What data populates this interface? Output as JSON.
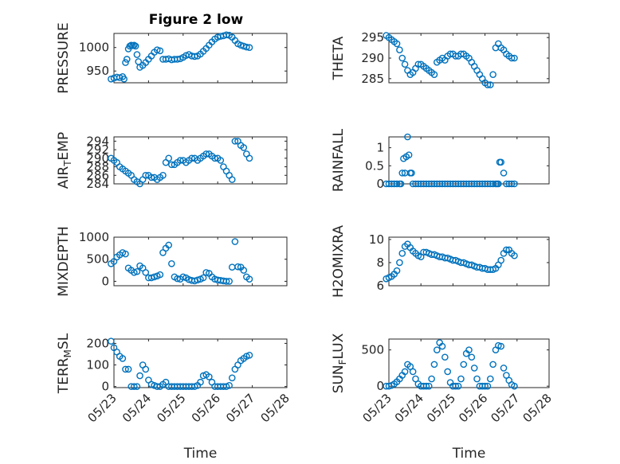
{
  "figure_title": "Figure 2 low",
  "series_color": "#0072BD",
  "chart_data": [
    {
      "type": "scatter",
      "id": "pressure",
      "title": "Figure 2 low",
      "ylabel": "PRESSURE",
      "xlabel": "",
      "xlim": [
        "05/23",
        "05/28"
      ],
      "xtick_labels": [],
      "ylim": [
        925,
        1030
      ],
      "yticks": [
        950,
        1000
      ],
      "grid": true,
      "minor_grid": true,
      "marker": "circle",
      "x": [
        "05/22 22:00",
        "05/23 00:00",
        "05/23 02:00",
        "05/23 04:00",
        "05/23 06:00",
        "05/23 07:00",
        "05/23 08:00",
        "05/23 09:00",
        "05/23 10:00",
        "05/23 11:00",
        "05/23 12:00",
        "05/23 13:00",
        "05/23 14:00",
        "05/23 15:00",
        "05/23 16:00",
        "05/23 17:00",
        "05/23 18:00",
        "05/23 20:00",
        "05/23 22:00",
        "05/24 00:00",
        "05/24 02:00",
        "05/24 04:00",
        "05/24 06:00",
        "05/24 08:00",
        "05/24 10:00",
        "05/24 12:00",
        "05/24 14:00",
        "05/24 16:00",
        "05/24 18:00",
        "05/24 20:00",
        "05/24 22:00",
        "05/25 00:00",
        "05/25 02:00",
        "05/25 04:00",
        "05/25 06:00",
        "05/25 08:00",
        "05/25 10:00",
        "05/25 12:00",
        "05/25 14:00",
        "05/25 16:00",
        "05/25 18:00",
        "05/25 20:00",
        "05/25 22:00",
        "05/26 00:00",
        "05/26 02:00",
        "05/26 04:00",
        "05/26 06:00",
        "05/26 08:00",
        "05/26 10:00",
        "05/26 12:00",
        "05/26 14:00",
        "05/26 16:00",
        "05/26 18:00",
        "05/26 20:00",
        "05/26 22:00"
      ],
      "y": [
        933,
        935,
        937,
        936,
        938,
        933,
        968,
        975,
        997,
        1003,
        1005,
        1004,
        1005,
        1003,
        985,
        970,
        958,
        962,
        968,
        975,
        982,
        990,
        995,
        993,
        975,
        975,
        976,
        974,
        975,
        975,
        976,
        979,
        983,
        985,
        982,
        981,
        982,
        986,
        992,
        998,
        1005,
        1012,
        1018,
        1022,
        1024,
        1025,
        1027,
        1026,
        1022,
        1015,
        1008,
        1005,
        1003,
        1001,
        1000
      ]
    },
    {
      "type": "scatter",
      "id": "theta",
      "title": "",
      "ylabel": "THETA",
      "xlabel": "",
      "xlim": [
        "05/23",
        "05/28"
      ],
      "xtick_labels": [],
      "ylim": [
        284,
        296
      ],
      "yticks": [
        285,
        290,
        295
      ],
      "grid": true,
      "minor_grid": true,
      "marker": "circle",
      "x": [
        "05/22 22:00",
        "05/23 00:00",
        "05/23 02:00",
        "05/23 04:00",
        "05/23 06:00",
        "05/23 08:00",
        "05/23 10:00",
        "05/23 12:00",
        "05/23 14:00",
        "05/23 16:00",
        "05/23 18:00",
        "05/23 20:00",
        "05/23 22:00",
        "05/24 00:00",
        "05/24 02:00",
        "05/24 04:00",
        "05/24 06:00",
        "05/24 08:00",
        "05/24 10:00",
        "05/24 12:00",
        "05/24 14:00",
        "05/24 16:00",
        "05/24 18:00",
        "05/24 20:00",
        "05/24 22:00",
        "05/25 00:00",
        "05/25 02:00",
        "05/25 04:00",
        "05/25 06:00",
        "05/25 08:00",
        "05/25 10:00",
        "05/25 12:00",
        "05/25 14:00",
        "05/25 16:00",
        "05/25 18:00",
        "05/25 20:00",
        "05/25 22:00",
        "05/26 00:00",
        "05/26 02:00",
        "05/26 04:00",
        "05/26 06:00",
        "05/26 08:00",
        "05/26 10:00",
        "05/26 12:00",
        "05/26 14:00",
        "05/26 16:00",
        "05/26 18:00",
        "05/26 20:00",
        "05/26 22:00"
      ],
      "y": [
        295.5,
        295,
        294.5,
        294,
        293.5,
        292,
        290,
        288.5,
        287,
        286,
        286.5,
        287.5,
        288.5,
        288.5,
        288,
        287.5,
        287,
        286.5,
        286,
        289,
        289.5,
        290,
        289.5,
        290.5,
        291,
        291,
        290.5,
        290.5,
        291,
        291,
        290.5,
        290,
        289,
        288,
        287,
        286,
        285,
        284,
        283.5,
        283.5,
        286,
        292.5,
        293.5,
        292.5,
        292,
        291,
        290.5,
        290,
        290
      ]
    },
    {
      "type": "scatter",
      "id": "air_temp",
      "title": "",
      "ylabel_parts": [
        "AIR",
        "T",
        "EMP"
      ],
      "xlabel": "",
      "xlim": [
        "05/23",
        "05/28"
      ],
      "xtick_labels": [],
      "ylim": [
        284,
        295
      ],
      "yticks": [
        284,
        286,
        288,
        290,
        292,
        294
      ],
      "grid": true,
      "minor_grid": true,
      "marker": "circle",
      "x": [
        "05/22 22:00",
        "05/23 00:00",
        "05/23 02:00",
        "05/23 04:00",
        "05/23 06:00",
        "05/23 08:00",
        "05/23 10:00",
        "05/23 12:00",
        "05/23 14:00",
        "05/23 16:00",
        "05/23 18:00",
        "05/23 20:00",
        "05/23 22:00",
        "05/24 00:00",
        "05/24 02:00",
        "05/24 04:00",
        "05/24 06:00",
        "05/24 08:00",
        "05/24 10:00",
        "05/24 12:00",
        "05/24 14:00",
        "05/24 16:00",
        "05/24 18:00",
        "05/24 20:00",
        "05/24 22:00",
        "05/25 00:00",
        "05/25 02:00",
        "05/25 04:00",
        "05/25 06:00",
        "05/25 08:00",
        "05/25 10:00",
        "05/25 12:00",
        "05/25 14:00",
        "05/25 16:00",
        "05/25 18:00",
        "05/25 20:00",
        "05/25 22:00",
        "05/26 00:00",
        "05/26 02:00",
        "05/26 04:00",
        "05/26 06:00",
        "05/26 08:00",
        "05/26 10:00",
        "05/26 12:00",
        "05/26 14:00",
        "05/26 16:00",
        "05/26 18:00",
        "05/26 20:00",
        "05/26 22:00"
      ],
      "y": [
        290,
        289.5,
        289,
        288,
        287.5,
        287,
        286.5,
        286,
        285,
        284.5,
        284,
        285,
        286,
        286,
        285.5,
        285.5,
        285,
        285.5,
        286,
        289,
        290,
        288.5,
        288.5,
        289,
        289.5,
        289.5,
        289,
        289.5,
        290,
        290,
        289.5,
        290,
        290.5,
        291,
        291,
        290.5,
        290,
        290,
        289.5,
        288,
        287,
        286,
        285,
        294,
        294,
        293,
        292.5,
        291,
        290
      ]
    },
    {
      "type": "scatter",
      "id": "rainfall",
      "title": "",
      "ylabel": "RAINFALL",
      "xlabel": "",
      "xlim": [
        "05/23",
        "05/28"
      ],
      "xtick_labels": [],
      "ylim": [
        0,
        1.3
      ],
      "yticks": [
        0,
        0.5,
        1
      ],
      "ytick_labels": [
        "0",
        "0.5",
        "1"
      ],
      "grid": true,
      "minor_grid": true,
      "marker": "circle",
      "x": [
        "05/22 22:00",
        "05/23 00:00",
        "05/23 02:00",
        "05/23 04:00",
        "05/23 06:00",
        "05/23 08:00",
        "05/23 09:00",
        "05/23 10:00",
        "05/23 11:00",
        "05/23 12:00",
        "05/23 13:00",
        "05/23 14:00",
        "05/23 15:00",
        "05/23 16:00",
        "05/23 17:00",
        "05/23 18:00",
        "05/23 20:00",
        "05/23 22:00",
        "05/24 00:00",
        "05/24 02:00",
        "05/24 04:00",
        "05/24 06:00",
        "05/24 08:00",
        "05/24 10:00",
        "05/24 12:00",
        "05/24 14:00",
        "05/24 16:00",
        "05/24 18:00",
        "05/24 20:00",
        "05/24 22:00",
        "05/25 00:00",
        "05/25 02:00",
        "05/25 04:00",
        "05/25 06:00",
        "05/25 08:00",
        "05/25 10:00",
        "05/25 12:00",
        "05/25 14:00",
        "05/25 16:00",
        "05/25 18:00",
        "05/25 20:00",
        "05/25 22:00",
        "05/26 00:00",
        "05/26 02:00",
        "05/26 04:00",
        "05/26 06:00",
        "05/26 08:00",
        "05/26 09:00",
        "05/26 10:00",
        "05/26 11:00",
        "05/26 12:00",
        "05/26 14:00",
        "05/26 16:00",
        "05/26 18:00",
        "05/26 20:00",
        "05/26 22:00"
      ],
      "y": [
        0,
        0,
        0,
        0,
        0,
        0,
        0,
        0.3,
        0.7,
        0.3,
        0.75,
        1.3,
        0.8,
        0.3,
        0.3,
        0,
        0,
        0,
        0,
        0,
        0,
        0,
        0,
        0,
        0,
        0,
        0,
        0,
        0,
        0,
        0,
        0,
        0,
        0,
        0,
        0,
        0,
        0,
        0,
        0,
        0,
        0,
        0,
        0,
        0,
        0,
        0,
        0,
        0,
        0.6,
        0.6,
        0.3,
        0,
        0,
        0,
        0
      ]
    },
    {
      "type": "scatter",
      "id": "mixdepth",
      "title": "",
      "ylabel": "MIXDEPTH",
      "xlabel": "",
      "xlim": [
        "05/23",
        "05/28"
      ],
      "xtick_labels": [],
      "ylim": [
        -100,
        1000
      ],
      "yticks": [
        0,
        500,
        1000
      ],
      "grid": true,
      "minor_grid": true,
      "marker": "circle",
      "x": [
        "05/22 22:00",
        "05/23 00:00",
        "05/23 02:00",
        "05/23 04:00",
        "05/23 06:00",
        "05/23 08:00",
        "05/23 10:00",
        "05/23 12:00",
        "05/23 14:00",
        "05/23 16:00",
        "05/23 18:00",
        "05/23 20:00",
        "05/23 22:00",
        "05/24 00:00",
        "05/24 02:00",
        "05/24 04:00",
        "05/24 06:00",
        "05/24 08:00",
        "05/24 10:00",
        "05/24 12:00",
        "05/24 14:00",
        "05/24 16:00",
        "05/24 18:00",
        "05/24 20:00",
        "05/24 22:00",
        "05/25 00:00",
        "05/25 02:00",
        "05/25 04:00",
        "05/25 06:00",
        "05/25 08:00",
        "05/25 10:00",
        "05/25 12:00",
        "05/25 14:00",
        "05/25 16:00",
        "05/25 18:00",
        "05/25 20:00",
        "05/25 22:00",
        "05/26 00:00",
        "05/26 02:00",
        "05/26 04:00",
        "05/26 06:00",
        "05/26 08:00",
        "05/26 10:00",
        "05/26 12:00",
        "05/26 14:00",
        "05/26 16:00",
        "05/26 18:00",
        "05/26 20:00",
        "05/26 22:00"
      ],
      "y": [
        400,
        450,
        550,
        600,
        650,
        620,
        300,
        250,
        200,
        220,
        350,
        300,
        200,
        80,
        80,
        100,
        120,
        150,
        650,
        750,
        820,
        400,
        100,
        60,
        50,
        100,
        80,
        40,
        20,
        10,
        30,
        50,
        80,
        200,
        180,
        100,
        50,
        30,
        20,
        10,
        0,
        0,
        320,
        900,
        330,
        320,
        250,
        100,
        50
      ]
    },
    {
      "type": "scatter",
      "id": "h2omixra",
      "title": "",
      "ylabel": "H2OMIXRA",
      "xlabel": "",
      "xlim": [
        "05/23",
        "05/28"
      ],
      "xtick_labels": [],
      "ylim": [
        6,
        10.2
      ],
      "yticks": [
        6,
        8,
        10
      ],
      "grid": true,
      "minor_grid": true,
      "marker": "circle",
      "x": [
        "05/22 22:00",
        "05/23 00:00",
        "05/23 02:00",
        "05/23 04:00",
        "05/23 06:00",
        "05/23 08:00",
        "05/23 10:00",
        "05/23 12:00",
        "05/23 14:00",
        "05/23 16:00",
        "05/23 18:00",
        "05/23 20:00",
        "05/23 22:00",
        "05/24 00:00",
        "05/24 02:00",
        "05/24 04:00",
        "05/24 06:00",
        "05/24 08:00",
        "05/24 10:00",
        "05/24 12:00",
        "05/24 14:00",
        "05/24 16:00",
        "05/24 18:00",
        "05/24 20:00",
        "05/24 22:00",
        "05/25 00:00",
        "05/25 02:00",
        "05/25 04:00",
        "05/25 06:00",
        "05/25 08:00",
        "05/25 10:00",
        "05/25 12:00",
        "05/25 14:00",
        "05/25 16:00",
        "05/25 18:00",
        "05/25 20:00",
        "05/25 22:00",
        "05/26 00:00",
        "05/26 02:00",
        "05/26 04:00",
        "05/26 06:00",
        "05/26 08:00",
        "05/26 10:00",
        "05/26 12:00",
        "05/26 14:00",
        "05/26 16:00",
        "05/26 18:00",
        "05/26 20:00",
        "05/26 22:00"
      ],
      "y": [
        6.6,
        6.7,
        6.8,
        7,
        7.3,
        8,
        8.8,
        9.4,
        9.6,
        9.3,
        9,
        8.8,
        8.6,
        8.5,
        8.9,
        8.9,
        8.8,
        8.7,
        8.7,
        8.6,
        8.5,
        8.5,
        8.4,
        8.4,
        8.3,
        8.2,
        8.2,
        8.1,
        8,
        8,
        7.9,
        7.8,
        7.8,
        7.7,
        7.6,
        7.6,
        7.5,
        7.5,
        7.4,
        7.4,
        7.4,
        7.5,
        7.8,
        8.2,
        8.8,
        9.1,
        9.1,
        8.8,
        8.6
      ]
    },
    {
      "type": "scatter",
      "id": "terr_msl",
      "title": "",
      "ylabel_parts": [
        "TERR",
        "M",
        "SL"
      ],
      "xlabel": "Time",
      "xlim": [
        "05/23",
        "05/28"
      ],
      "xtick_labels": [
        "05/23",
        "05/24",
        "05/25",
        "05/26",
        "05/27",
        "05/28"
      ],
      "ylim": [
        -5,
        220
      ],
      "yticks": [
        0,
        100,
        200
      ],
      "grid": true,
      "minor_grid": true,
      "marker": "circle",
      "x": [
        "05/22 22:00",
        "05/23 00:00",
        "05/23 02:00",
        "05/23 04:00",
        "05/23 06:00",
        "05/23 08:00",
        "05/23 10:00",
        "05/23 12:00",
        "05/23 14:00",
        "05/23 16:00",
        "05/23 18:00",
        "05/23 20:00",
        "05/23 22:00",
        "05/24 00:00",
        "05/24 02:00",
        "05/24 04:00",
        "05/24 06:00",
        "05/24 08:00",
        "05/24 10:00",
        "05/24 12:00",
        "05/24 14:00",
        "05/24 16:00",
        "05/24 18:00",
        "05/24 20:00",
        "05/24 22:00",
        "05/25 00:00",
        "05/25 02:00",
        "05/25 04:00",
        "05/25 06:00",
        "05/25 08:00",
        "05/25 10:00",
        "05/25 12:00",
        "05/25 14:00",
        "05/25 16:00",
        "05/25 18:00",
        "05/25 20:00",
        "05/25 22:00",
        "05/26 00:00",
        "05/26 02:00",
        "05/26 04:00",
        "05/26 06:00",
        "05/26 08:00",
        "05/26 10:00",
        "05/26 12:00",
        "05/26 14:00",
        "05/26 16:00",
        "05/26 18:00",
        "05/26 20:00",
        "05/26 22:00"
      ],
      "y": [
        210,
        180,
        160,
        140,
        130,
        80,
        80,
        0,
        0,
        0,
        50,
        100,
        80,
        30,
        10,
        5,
        0,
        0,
        10,
        20,
        0,
        0,
        0,
        0,
        0,
        0,
        0,
        0,
        0,
        0,
        5,
        20,
        50,
        55,
        45,
        20,
        0,
        0,
        0,
        0,
        0,
        5,
        40,
        80,
        100,
        120,
        130,
        140,
        145
      ]
    },
    {
      "type": "scatter",
      "id": "sun_flux",
      "title": "",
      "ylabel_parts": [
        "SUN",
        "F",
        "LUX"
      ],
      "xlabel": "Time",
      "xlim": [
        "05/23",
        "05/28"
      ],
      "xtick_labels": [
        "05/23",
        "05/24",
        "05/25",
        "05/26",
        "05/27",
        "05/28"
      ],
      "ylim": [
        -20,
        650
      ],
      "yticks": [
        0,
        500
      ],
      "grid": true,
      "minor_grid": true,
      "marker": "circle",
      "x": [
        "05/22 22:00",
        "05/23 00:00",
        "05/23 02:00",
        "05/23 04:00",
        "05/23 06:00",
        "05/23 08:00",
        "05/23 10:00",
        "05/23 12:00",
        "05/23 14:00",
        "05/23 16:00",
        "05/23 18:00",
        "05/23 20:00",
        "05/23 22:00",
        "05/24 00:00",
        "05/24 02:00",
        "05/24 04:00",
        "05/24 06:00",
        "05/24 08:00",
        "05/24 10:00",
        "05/24 12:00",
        "05/24 14:00",
        "05/24 16:00",
        "05/24 18:00",
        "05/24 20:00",
        "05/24 22:00",
        "05/25 00:00",
        "05/25 02:00",
        "05/25 04:00",
        "05/25 06:00",
        "05/25 08:00",
        "05/25 10:00",
        "05/25 12:00",
        "05/25 14:00",
        "05/25 16:00",
        "05/25 18:00",
        "05/25 20:00",
        "05/25 22:00",
        "05/26 00:00",
        "05/26 02:00",
        "05/26 04:00",
        "05/26 06:00",
        "05/26 08:00",
        "05/26 10:00",
        "05/26 12:00",
        "05/26 14:00",
        "05/26 16:00",
        "05/26 18:00",
        "05/26 20:00",
        "05/26 22:00"
      ],
      "y": [
        0,
        0,
        10,
        30,
        60,
        100,
        150,
        200,
        300,
        270,
        200,
        100,
        30,
        0,
        0,
        0,
        0,
        100,
        300,
        500,
        600,
        550,
        400,
        200,
        50,
        0,
        0,
        0,
        100,
        300,
        450,
        500,
        400,
        250,
        100,
        0,
        0,
        0,
        0,
        100,
        300,
        500,
        560,
        550,
        250,
        150,
        80,
        20,
        0
      ]
    }
  ]
}
